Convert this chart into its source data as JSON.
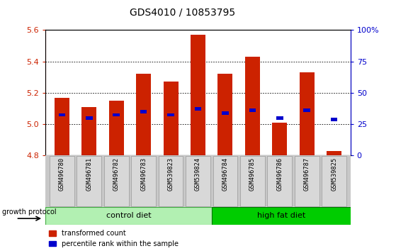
{
  "title": "GDS4010 / 10853795",
  "samples": [
    "GSM496780",
    "GSM496781",
    "GSM496782",
    "GSM496783",
    "GSM539823",
    "GSM539824",
    "GSM496784",
    "GSM496785",
    "GSM496786",
    "GSM496787",
    "GSM539825"
  ],
  "red_values": [
    5.17,
    5.11,
    5.15,
    5.32,
    5.27,
    5.57,
    5.32,
    5.43,
    5.01,
    5.33,
    4.83
  ],
  "blue_values": [
    5.06,
    5.04,
    5.06,
    5.08,
    5.06,
    5.1,
    5.07,
    5.09,
    5.04,
    5.09,
    5.03
  ],
  "ymin": 4.8,
  "ymax": 5.6,
  "y_ticks_left": [
    4.8,
    5.0,
    5.2,
    5.4,
    5.6
  ],
  "y_ticks_right_vals": [
    4.8,
    5.0,
    5.2,
    5.4,
    5.6
  ],
  "y_ticks_right_labels": [
    "0",
    "25",
    "50",
    "75",
    "100%"
  ],
  "ctrl_count": 6,
  "hfd_count": 5,
  "protocol_label": "growth protocol",
  "bar_width": 0.55,
  "red_color": "#cc2200",
  "blue_color": "#0000cc",
  "ctrl_color": "#b2f0b2",
  "hfd_color": "#00cc00",
  "xlabel_area_bg": "#cccccc",
  "legend_items": [
    "transformed count",
    "percentile rank within the sample"
  ]
}
